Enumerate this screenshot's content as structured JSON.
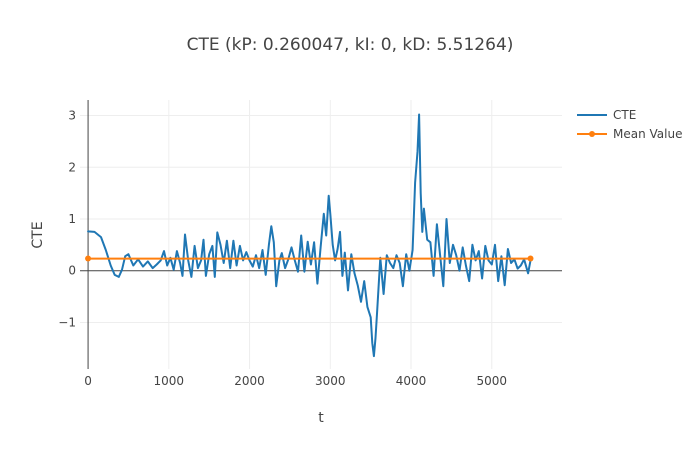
{
  "chart_data": {
    "type": "line",
    "title": "CTE (kP: 0.260047, kI: 0, kD: 5.51264)",
    "xlabel": "t",
    "ylabel": "CTE",
    "xlim": [
      -100,
      5870
    ],
    "ylim": [
      -1.9,
      3.3
    ],
    "x_ticks": [
      0,
      1000,
      2000,
      3000,
      4000,
      5000
    ],
    "x_tick_labels": [
      "0",
      "1000",
      "2000",
      "3000",
      "4000",
      "5000"
    ],
    "y_ticks": [
      -1,
      0,
      1,
      2,
      3
    ],
    "y_tick_labels": [
      "−1",
      "0",
      "1",
      "2",
      "3"
    ],
    "grid": true,
    "legend_position": "top-right",
    "colors": {
      "cte": "#1f77b4",
      "mean": "#ff7f0e",
      "grid": "#eeeeee",
      "zeroline": "#444444",
      "axis": "#444444"
    },
    "series": [
      {
        "name": "CTE",
        "mode": "lines",
        "x": [
          0,
          80,
          160,
          220,
          280,
          330,
          380,
          420,
          460,
          500,
          560,
          620,
          680,
          740,
          800,
          850,
          900,
          940,
          980,
          1020,
          1060,
          1100,
          1140,
          1170,
          1200,
          1240,
          1280,
          1320,
          1360,
          1400,
          1430,
          1460,
          1500,
          1540,
          1570,
          1600,
          1640,
          1680,
          1720,
          1760,
          1800,
          1840,
          1880,
          1920,
          1960,
          2000,
          2040,
          2080,
          2120,
          2160,
          2200,
          2240,
          2270,
          2300,
          2330,
          2370,
          2400,
          2440,
          2480,
          2520,
          2560,
          2600,
          2640,
          2680,
          2720,
          2760,
          2800,
          2840,
          2880,
          2920,
          2950,
          2980,
          3000,
          3030,
          3060,
          3090,
          3120,
          3150,
          3180,
          3220,
          3260,
          3300,
          3340,
          3380,
          3420,
          3460,
          3500,
          3520,
          3540,
          3560,
          3580,
          3620,
          3660,
          3700,
          3740,
          3780,
          3820,
          3860,
          3900,
          3940,
          3980,
          4020,
          4050,
          4080,
          4100,
          4120,
          4140,
          4160,
          4200,
          4240,
          4280,
          4320,
          4360,
          4400,
          4440,
          4480,
          4520,
          4560,
          4600,
          4640,
          4680,
          4720,
          4760,
          4800,
          4840,
          4880,
          4920,
          4960,
          5000,
          5040,
          5080,
          5120,
          5160,
          5200,
          5240,
          5280,
          5320,
          5360,
          5400,
          5450,
          5480
        ],
        "y": [
          0.76,
          0.75,
          0.65,
          0.4,
          0.1,
          -0.08,
          -0.12,
          0.02,
          0.28,
          0.32,
          0.1,
          0.22,
          0.08,
          0.18,
          0.05,
          0.12,
          0.2,
          0.38,
          0.1,
          0.25,
          0.02,
          0.38,
          0.15,
          -0.1,
          0.7,
          0.2,
          -0.12,
          0.48,
          0.05,
          0.2,
          0.6,
          -0.1,
          0.32,
          0.48,
          -0.12,
          0.74,
          0.5,
          0.15,
          0.58,
          0.05,
          0.58,
          0.1,
          0.48,
          0.2,
          0.36,
          0.2,
          0.08,
          0.3,
          0.05,
          0.4,
          -0.08,
          0.5,
          0.86,
          0.55,
          -0.3,
          0.2,
          0.34,
          0.05,
          0.22,
          0.45,
          0.2,
          -0.02,
          0.68,
          -0.02,
          0.56,
          0.12,
          0.55,
          -0.25,
          0.45,
          1.1,
          0.68,
          1.45,
          1.1,
          0.5,
          0.2,
          0.42,
          0.75,
          -0.1,
          0.35,
          -0.38,
          0.32,
          -0.05,
          -0.28,
          -0.6,
          -0.2,
          -0.7,
          -0.9,
          -1.4,
          -1.65,
          -1.3,
          -0.8,
          0.25,
          -0.45,
          0.3,
          0.15,
          0.05,
          0.3,
          0.15,
          -0.3,
          0.32,
          0.0,
          0.4,
          1.7,
          2.3,
          3.02,
          1.5,
          0.75,
          1.2,
          0.6,
          0.55,
          -0.1,
          0.9,
          0.3,
          -0.3,
          1.0,
          0.15,
          0.5,
          0.3,
          0.0,
          0.45,
          0.1,
          -0.2,
          0.5,
          0.2,
          0.38,
          -0.15,
          0.48,
          0.2,
          0.12,
          0.5,
          -0.2,
          0.28,
          -0.28,
          0.42,
          0.15,
          0.22,
          0.04,
          0.1,
          0.22,
          -0.05,
          0.2
        ]
      },
      {
        "name": "Mean Value",
        "mode": "lines+markers",
        "x": [
          0,
          5480
        ],
        "y": [
          0.235,
          0.235
        ]
      }
    ]
  }
}
